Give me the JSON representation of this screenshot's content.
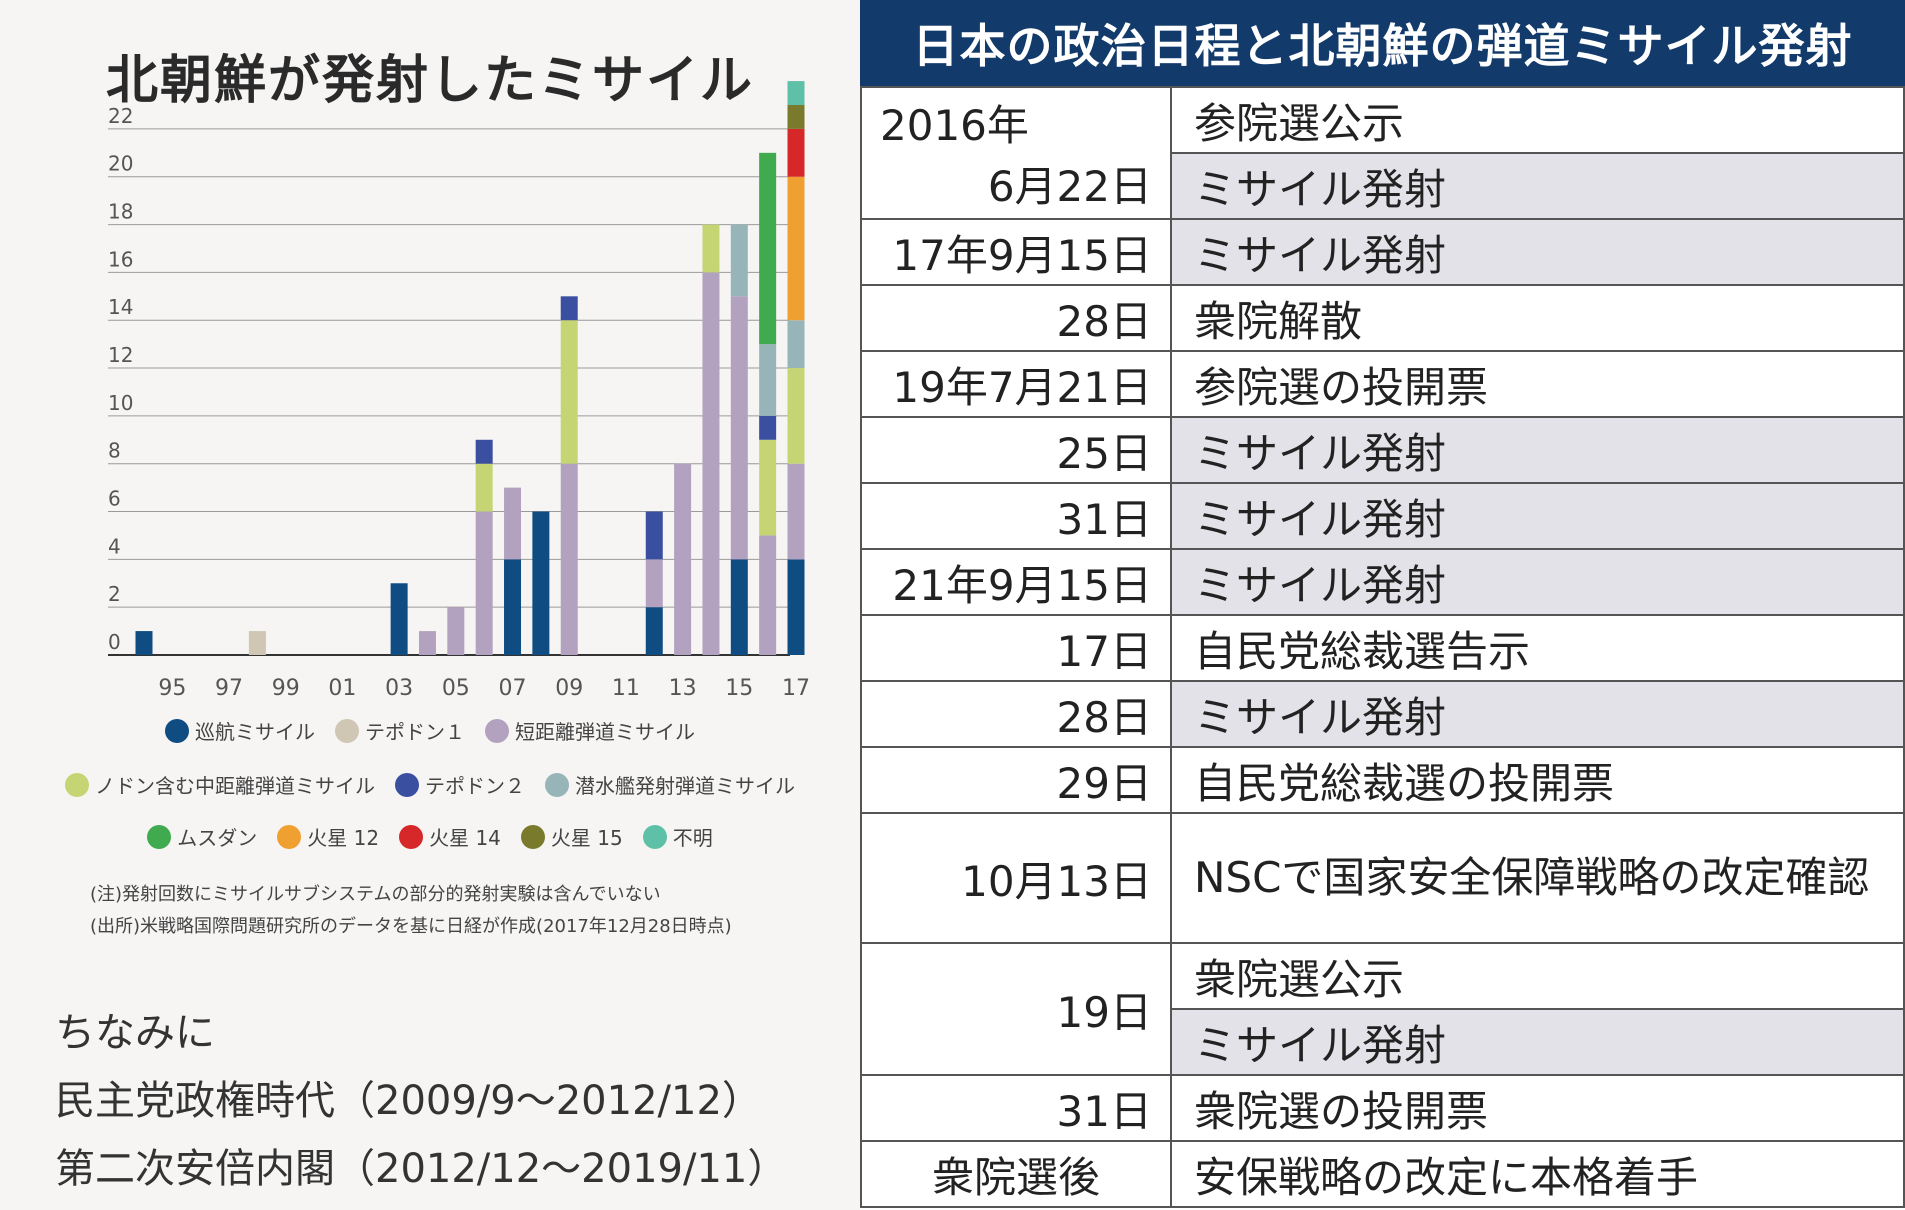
{
  "left": {
    "title": "北朝鮮が発射したミサイル",
    "notes": [
      "(注)発射回数にミサイルサブシステムの部分的発射実験は含んでいない",
      "(出所)米戦略国際問題研究所のデータを基に日経が作成(2017年12月28日時点)"
    ],
    "bottom_text": [
      "ちなみに",
      "民主党政権時代（2009/9〜2012/12）",
      "第二次安倍内閣（2012/12〜2019/11）"
    ]
  },
  "chart_data": {
    "type": "bar",
    "stacked": true,
    "title": "北朝鮮が発射したミサイル",
    "xlabel": "",
    "ylabel": "",
    "ylim": [
      0,
      23
    ],
    "yticks": [
      0,
      2,
      4,
      6,
      8,
      10,
      12,
      14,
      16,
      18,
      20,
      22
    ],
    "grid": true,
    "x_tick_labels": [
      "95",
      "97",
      "99",
      "01",
      "03",
      "05",
      "07",
      "09",
      "11",
      "13",
      "15",
      "17"
    ],
    "categories": [
      "1994",
      "1995",
      "1996",
      "1997",
      "1998",
      "1999",
      "2000",
      "2001",
      "2002",
      "2003",
      "2004",
      "2005",
      "2006",
      "2007",
      "2008",
      "2009",
      "2010",
      "2011",
      "2012",
      "2013",
      "2014",
      "2015",
      "2016",
      "2017"
    ],
    "series": [
      {
        "name": "巡航ミサイル",
        "color": "#0f4c82",
        "values": [
          1,
          0,
          0,
          0,
          0,
          0,
          0,
          0,
          0,
          3,
          0,
          0,
          0,
          4,
          6,
          0,
          0,
          0,
          2,
          0,
          0,
          4,
          0,
          4
        ]
      },
      {
        "name": "テポドン1",
        "color": "#cfc6b3",
        "values": [
          0,
          0,
          0,
          0,
          1,
          0,
          0,
          0,
          0,
          0,
          0,
          0,
          0,
          0,
          0,
          0,
          0,
          0,
          0,
          0,
          0,
          0,
          0,
          0
        ]
      },
      {
        "name": "短距離弾道ミサイル",
        "color": "#b3a2bf",
        "values": [
          0,
          0,
          0,
          0,
          0,
          0,
          0,
          0,
          0,
          0,
          1,
          2,
          6,
          3,
          0,
          8,
          0,
          0,
          2,
          8,
          16,
          11,
          5,
          4
        ]
      },
      {
        "name": "ノドン含む中距離弾道ミサイル",
        "color": "#c6d573",
        "values": [
          0,
          0,
          0,
          0,
          0,
          0,
          0,
          0,
          0,
          0,
          0,
          0,
          2,
          0,
          0,
          6,
          0,
          0,
          0,
          0,
          2,
          0,
          4,
          4
        ]
      },
      {
        "name": "テポドン2",
        "color": "#3a4fa0",
        "values": [
          0,
          0,
          0,
          0,
          0,
          0,
          0,
          0,
          0,
          0,
          0,
          0,
          1,
          0,
          0,
          1,
          0,
          0,
          2,
          0,
          0,
          0,
          1,
          0
        ]
      },
      {
        "name": "潜水艦発射弾道ミサイル",
        "color": "#97b5b8",
        "values": [
          0,
          0,
          0,
          0,
          0,
          0,
          0,
          0,
          0,
          0,
          0,
          0,
          0,
          0,
          0,
          0,
          0,
          0,
          0,
          0,
          0,
          3,
          3,
          2
        ]
      },
      {
        "name": "ムスダン",
        "color": "#3faa4e",
        "values": [
          0,
          0,
          0,
          0,
          0,
          0,
          0,
          0,
          0,
          0,
          0,
          0,
          0,
          0,
          0,
          0,
          0,
          0,
          0,
          0,
          0,
          0,
          8,
          0
        ]
      },
      {
        "name": "火星12",
        "color": "#f0a030",
        "values": [
          0,
          0,
          0,
          0,
          0,
          0,
          0,
          0,
          0,
          0,
          0,
          0,
          0,
          0,
          0,
          0,
          0,
          0,
          0,
          0,
          0,
          0,
          0,
          6
        ]
      },
      {
        "name": "火星14",
        "color": "#d62828",
        "values": [
          0,
          0,
          0,
          0,
          0,
          0,
          0,
          0,
          0,
          0,
          0,
          0,
          0,
          0,
          0,
          0,
          0,
          0,
          0,
          0,
          0,
          0,
          0,
          2
        ]
      },
      {
        "name": "火星15",
        "color": "#7a7a2c",
        "values": [
          0,
          0,
          0,
          0,
          0,
          0,
          0,
          0,
          0,
          0,
          0,
          0,
          0,
          0,
          0,
          0,
          0,
          0,
          0,
          0,
          0,
          0,
          0,
          1
        ]
      },
      {
        "name": "不明",
        "color": "#5fc0a8",
        "values": [
          0,
          0,
          0,
          0,
          0,
          0,
          0,
          0,
          0,
          0,
          0,
          0,
          0,
          0,
          0,
          0,
          0,
          0,
          0,
          0,
          0,
          0,
          0,
          1
        ]
      }
    ],
    "legend": [
      {
        "label": "巡航ミサイル",
        "color": "#0f4c82"
      },
      {
        "label": "テポドン１",
        "color": "#cfc6b3"
      },
      {
        "label": "短距離弾道ミサイル",
        "color": "#b3a2bf"
      },
      {
        "label": "ノドン含む中距離弾道ミサイル",
        "color": "#c6d573"
      },
      {
        "label": "テポドン２",
        "color": "#3a4fa0"
      },
      {
        "label": "潜水艦発射弾道ミサイル",
        "color": "#97b5b8"
      },
      {
        "label": "ムスダン",
        "color": "#3faa4e"
      },
      {
        "label": "火星 12",
        "color": "#f0a030"
      },
      {
        "label": "火星 14",
        "color": "#d62828"
      },
      {
        "label": "火星 15",
        "color": "#7a7a2c"
      },
      {
        "label": "不明",
        "color": "#5fc0a8"
      }
    ]
  },
  "table": {
    "header": "日本の政治日程と北朝鮮の弾道ミサイル発射",
    "rows": [
      {
        "date": "2016年",
        "event": "参院選公示"
      },
      {
        "date": "6月22日",
        "event": "ミサイル発射"
      },
      {
        "date": "17年9月15日",
        "event": "ミサイル発射"
      },
      {
        "date": "28日",
        "event": "衆院解散"
      },
      {
        "date": "19年7月21日",
        "event": "参院選の投開票"
      },
      {
        "date": "25日",
        "event": "ミサイル発射"
      },
      {
        "date": "31日",
        "event": "ミサイル発射"
      },
      {
        "date": "21年9月15日",
        "event": "ミサイル発射"
      },
      {
        "date": "17日",
        "event": "自民党総裁選告示"
      },
      {
        "date": "28日",
        "event": "ミサイル発射"
      },
      {
        "date": "29日",
        "event": "自民党総裁選の投開票"
      },
      {
        "date": "10月13日",
        "event": "NSCで国家安全保障戦略の改定確認"
      },
      {
        "date": "19日",
        "event": "衆院選公示"
      },
      {
        "date": "",
        "event": "ミサイル発射"
      },
      {
        "date": "31日",
        "event": "衆院選の投開票"
      },
      {
        "date": "衆院選後",
        "event": "安保戦略の改定に本格着手"
      }
    ]
  }
}
